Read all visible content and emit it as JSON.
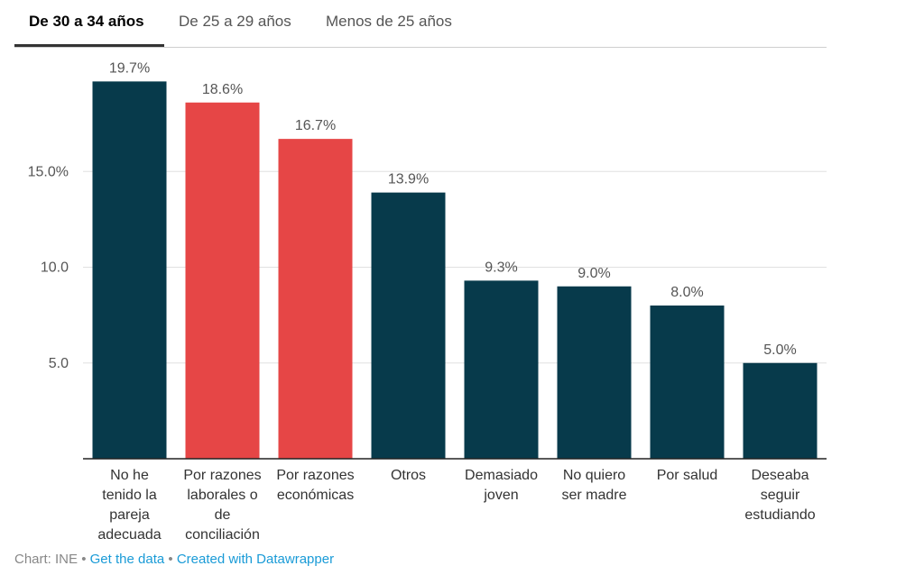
{
  "tabs": [
    {
      "label": "De 30 a 34 años",
      "active": true
    },
    {
      "label": "De 25 a 29 años",
      "active": false
    },
    {
      "label": "Menos de 25 años",
      "active": false
    }
  ],
  "colors": {
    "dark": "#073a4b",
    "red": "#e64646",
    "grid": "#e0e0e0",
    "axis": "#222222"
  },
  "chart_data": {
    "type": "bar",
    "categories": [
      [
        "No he",
        "tenido la",
        "pareja",
        "adecuada"
      ],
      [
        "Por razones",
        "laborales o",
        "de",
        "conciliación"
      ],
      [
        "Por razones",
        "económicas"
      ],
      [
        "Otros"
      ],
      [
        "Demasiado",
        "joven"
      ],
      [
        "No quiero",
        "ser madre"
      ],
      [
        "Por salud"
      ],
      [
        "Deseaba",
        "seguir",
        "estudiando"
      ]
    ],
    "values": [
      19.7,
      18.6,
      16.7,
      13.9,
      9.3,
      9.0,
      8.0,
      5.0
    ],
    "value_labels": [
      "19.7%",
      "18.6%",
      "16.7%",
      "13.9%",
      "9.3%",
      "9.0%",
      "8.0%",
      "5.0%"
    ],
    "bar_colors": [
      "dark",
      "red",
      "red",
      "dark",
      "dark",
      "dark",
      "dark",
      "dark"
    ],
    "yticks": [
      5,
      10,
      15
    ],
    "ytick_labels": [
      "5.0",
      "10.0",
      "15.0%"
    ],
    "ylim": [
      0,
      20
    ],
    "grid": true
  },
  "footer": {
    "source": "Chart: INE",
    "separator": "•",
    "get_data": "Get the data",
    "created_with": "Created with Datawrapper"
  }
}
